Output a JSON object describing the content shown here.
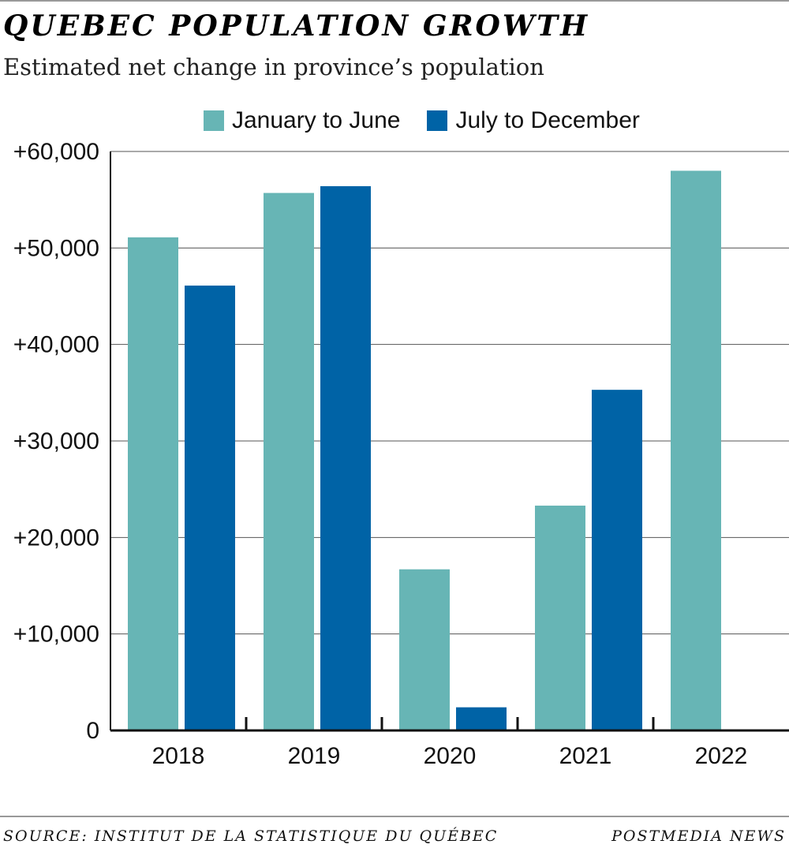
{
  "chart_data": {
    "type": "bar",
    "title": "QUEBEC POPULATION GROWTH",
    "subtitle": "Estimated net change in province’s population",
    "categories": [
      "2018",
      "2019",
      "2020",
      "2021",
      "2022"
    ],
    "series": [
      {
        "name": "January to June",
        "color": "#67b5b5",
        "values": [
          51100,
          55700,
          16700,
          23300,
          58000
        ]
      },
      {
        "name": "July to December",
        "color": "#0063a6",
        "values": [
          46100,
          56400,
          2400,
          35300,
          null
        ]
      }
    ],
    "yticks": [
      0,
      10000,
      20000,
      30000,
      40000,
      50000,
      60000
    ],
    "ytick_labels": [
      "0",
      "+10,000",
      "+20,000",
      "+30,000",
      "+40,000",
      "+50,000",
      "+60,000"
    ],
    "ylim": [
      0,
      60000
    ],
    "xlabel": "",
    "ylabel": "",
    "grid": true,
    "legend_position": "top"
  },
  "source": "SOURCE: INSTITUT DE LA STATISTIQUE DU QUÉBEC",
  "credit": "POSTMEDIA NEWS"
}
